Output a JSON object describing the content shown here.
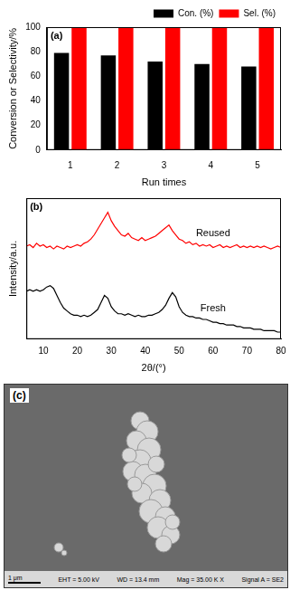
{
  "chart_data": [
    {
      "type": "bar",
      "annotation": "(a)",
      "x_label": "Run times",
      "y_label": "Conversion or Selectivity/%",
      "categories": [
        "1",
        "2",
        "3",
        "4",
        "5"
      ],
      "series": [
        {
          "name": "Con. (%)",
          "color": "#000000",
          "values": [
            79,
            77,
            72,
            70,
            68
          ]
        },
        {
          "name": "Sel. (%)",
          "color": "#ff0000",
          "values": [
            100,
            100,
            100,
            100,
            100
          ]
        }
      ],
      "ylim": [
        0,
        100
      ],
      "yticks": [
        0,
        20,
        40,
        60,
        80,
        100
      ],
      "grid": false,
      "legend": "top right"
    },
    {
      "type": "line",
      "annotation": "(b)",
      "x_label": "2θ/(°)",
      "y_label": "Intensity/a.u.",
      "x": [
        5,
        6,
        7,
        8,
        9,
        10,
        11,
        12,
        13,
        14,
        15,
        16,
        17,
        18,
        19,
        20,
        21,
        22,
        23,
        24,
        25,
        26,
        27,
        28,
        29,
        30,
        31,
        32,
        33,
        34,
        35,
        36,
        37,
        38,
        39,
        40,
        41,
        42,
        43,
        44,
        45,
        46,
        47,
        48,
        49,
        50,
        51,
        52,
        53,
        54,
        55,
        56,
        57,
        58,
        59,
        60,
        61,
        62,
        63,
        64,
        65,
        66,
        67,
        68,
        69,
        70,
        71,
        72,
        73,
        74,
        75,
        76,
        77,
        78,
        79,
        80
      ],
      "series": [
        {
          "name": "Reused",
          "color": "#ff0000",
          "values": [
            66,
            67,
            65,
            68,
            66,
            67,
            65,
            66,
            64,
            66,
            65,
            64,
            66,
            65,
            66,
            67,
            66,
            68,
            69,
            71,
            74,
            78,
            82,
            86,
            90,
            84,
            80,
            77,
            74,
            73,
            75,
            72,
            71,
            70,
            72,
            70,
            71,
            72,
            73,
            75,
            77,
            79,
            81,
            77,
            74,
            71,
            70,
            68,
            69,
            67,
            68,
            66,
            67,
            66,
            67,
            65,
            66,
            67,
            65,
            66,
            65,
            66,
            67,
            65,
            66,
            65,
            66,
            65,
            66,
            65,
            66,
            65,
            64,
            65,
            66,
            65
          ]
        },
        {
          "name": "Fresh",
          "color": "#000000",
          "values": [
            34,
            35,
            34,
            35,
            34,
            35,
            37,
            38,
            36,
            31,
            26,
            22,
            20,
            18,
            17,
            17,
            16,
            17,
            16,
            17,
            19,
            21,
            26,
            31,
            29,
            23,
            20,
            18,
            18,
            17,
            18,
            17,
            16,
            17,
            16,
            16,
            17,
            17,
            18,
            19,
            21,
            24,
            29,
            33,
            30,
            23,
            19,
            17,
            16,
            16,
            15,
            15,
            14,
            14,
            13,
            12,
            12,
            11,
            11,
            10,
            10,
            10,
            9,
            9,
            8,
            8,
            8,
            7,
            7,
            7,
            6,
            6,
            6,
            6,
            5,
            5
          ]
        }
      ],
      "xlim": [
        5,
        80
      ],
      "xticks": [
        10,
        20,
        30,
        40,
        50,
        60,
        70,
        80
      ],
      "ylim": [
        0,
        100
      ],
      "grid": false,
      "tick_labels": "x"
    }
  ],
  "panel_c": {
    "label": "(c)",
    "scale_bar": "1 μm",
    "info": [
      "EHT = 5.00 kV",
      "WD = 13.4 mm",
      "Mag = 35.00 K X",
      "Signal A = SE2"
    ]
  }
}
